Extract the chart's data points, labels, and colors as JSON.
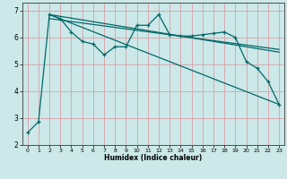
{
  "xlabel": "Humidex (Indice chaleur)",
  "background_color": "#cce8e8",
  "grid_color": "#d8a0a8",
  "line_color": "#006868",
  "xlim": [
    -0.5,
    23.5
  ],
  "ylim": [
    2.0,
    7.3
  ],
  "xticks": [
    0,
    1,
    2,
    3,
    4,
    5,
    6,
    7,
    8,
    9,
    10,
    11,
    12,
    13,
    14,
    15,
    16,
    17,
    18,
    19,
    20,
    21,
    22,
    23
  ],
  "yticks": [
    2,
    3,
    4,
    5,
    6,
    7
  ],
  "line_jagged_x": [
    0,
    1,
    2,
    3,
    4,
    5,
    6,
    7,
    8,
    9,
    10,
    11,
    12,
    13,
    14,
    15,
    16,
    17,
    18,
    19,
    20,
    21,
    22,
    23
  ],
  "line_jagged_y": [
    2.45,
    2.85,
    6.85,
    6.7,
    6.2,
    5.85,
    5.75,
    5.35,
    5.65,
    5.65,
    6.45,
    6.45,
    6.85,
    6.1,
    6.05,
    6.05,
    6.1,
    6.15,
    6.2,
    6.0,
    5.1,
    4.85,
    4.35,
    3.5
  ],
  "line_trend1_x": [
    2,
    23
  ],
  "line_trend1_y": [
    6.85,
    3.5
  ],
  "line_trend2_x": [
    2,
    23
  ],
  "line_trend2_y": [
    6.85,
    5.45
  ],
  "line_trend3_x": [
    2,
    23
  ],
  "line_trend3_y": [
    6.7,
    5.55
  ]
}
